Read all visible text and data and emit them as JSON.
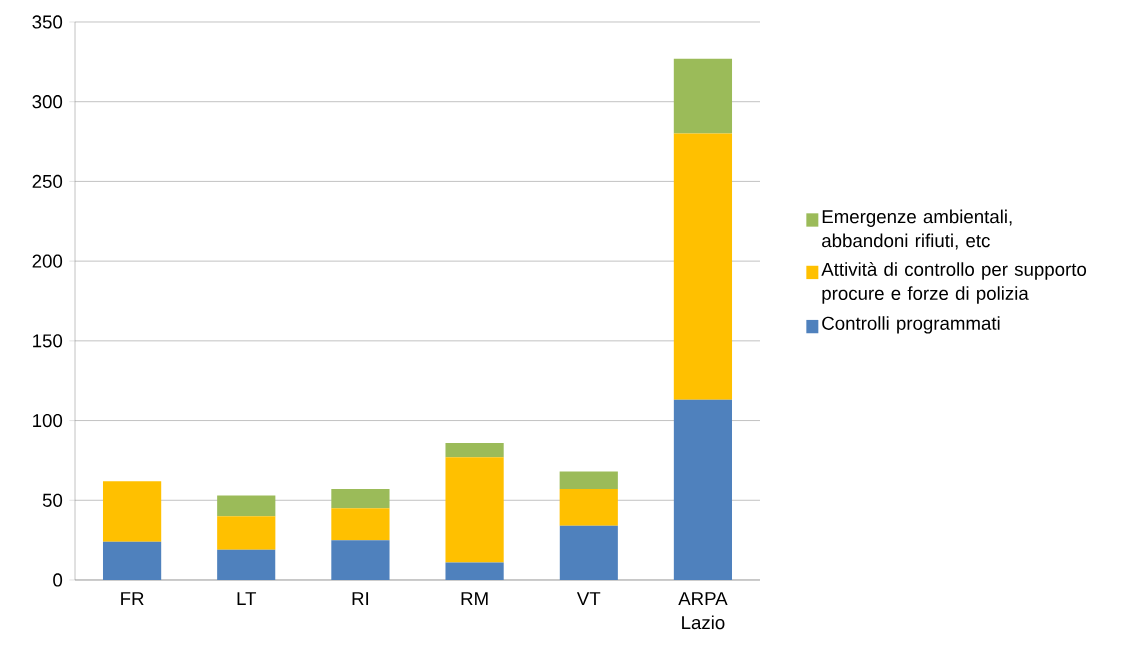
{
  "chart_data": {
    "type": "bar",
    "stacked": true,
    "categories": [
      "FR",
      "LT",
      "RI",
      "RM",
      "VT",
      "ARPA Lazio"
    ],
    "series": [
      {
        "name": "Controlli programmati",
        "color": "#4f81bd",
        "values": [
          24,
          19,
          25,
          11,
          34,
          113
        ]
      },
      {
        "name": "Attività di controllo per supporto procure e forze di polizia",
        "color": "#ffc000",
        "values": [
          38,
          21,
          20,
          66,
          23,
          167
        ]
      },
      {
        "name": "Emergenze ambientali, abbandoni rifiuti, etc",
        "color": "#9bbb59",
        "values": [
          null,
          13,
          12,
          9,
          11,
          47
        ]
      }
    ],
    "ylim": [
      0,
      350
    ],
    "yticks": [
      0,
      50,
      100,
      150,
      200,
      250,
      300,
      350
    ],
    "grid": "y",
    "legend": "right"
  }
}
